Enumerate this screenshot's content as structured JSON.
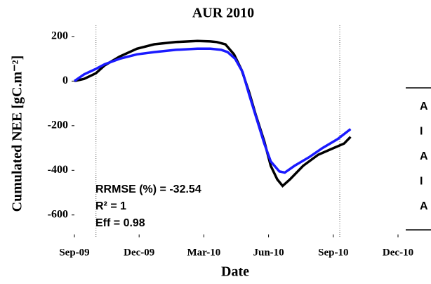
{
  "chart_data": {
    "type": "line",
    "title": "AUR 2010",
    "xlabel": "Date",
    "ylabel": "Cumulated NEE [gC.m⁻²]",
    "xlim": [
      0,
      15
    ],
    "ylim": [
      -700,
      250
    ],
    "xticks": [
      {
        "value": 0,
        "label": "Sep-09"
      },
      {
        "value": 3,
        "label": "Dec-09"
      },
      {
        "value": 6,
        "label": "Mar-10"
      },
      {
        "value": 9,
        "label": "Jun-10"
      },
      {
        "value": 12,
        "label": "Sep-10"
      },
      {
        "value": 15,
        "label": "Dec-10"
      }
    ],
    "yticks": [
      -600,
      -400,
      -200,
      0,
      200
    ],
    "vlines": [
      1,
      12.3
    ],
    "series": [
      {
        "color": "#000000",
        "x": [
          0,
          0.45,
          1.0,
          1.4,
          2.1,
          2.9,
          3.7,
          4.7,
          5.7,
          6.3,
          6.6,
          7.0,
          7.4,
          7.75,
          8.1,
          8.4,
          8.8,
          9.1,
          9.4,
          9.65,
          10.0,
          10.6,
          11.3,
          11.9,
          12.5,
          12.8
        ],
        "values": [
          0,
          10,
          35,
          70,
          110,
          145,
          165,
          175,
          180,
          178,
          175,
          165,
          120,
          50,
          -50,
          -150,
          -270,
          -380,
          -440,
          -470,
          -440,
          -380,
          -330,
          -305,
          -280,
          -250
        ]
      },
      {
        "color": "#1a1aff",
        "x": [
          0,
          0.45,
          1.0,
          1.4,
          2.1,
          2.9,
          3.7,
          4.7,
          5.7,
          6.3,
          6.8,
          7.1,
          7.45,
          7.8,
          8.1,
          8.45,
          8.8,
          9.1,
          9.5,
          9.75,
          10.2,
          10.9,
          11.5,
          12.2,
          12.8
        ],
        "values": [
          0,
          30,
          55,
          75,
          100,
          120,
          130,
          140,
          145,
          145,
          140,
          130,
          100,
          40,
          -60,
          -170,
          -280,
          -360,
          -405,
          -410,
          -380,
          -340,
          -300,
          -260,
          -215
        ]
      }
    ],
    "annotations": [
      "RRMSE (%) = -32.54",
      "R² = 1",
      "Eff = 0.98"
    ],
    "side_labels": [
      "A",
      "I",
      "A",
      "I",
      "A"
    ]
  }
}
